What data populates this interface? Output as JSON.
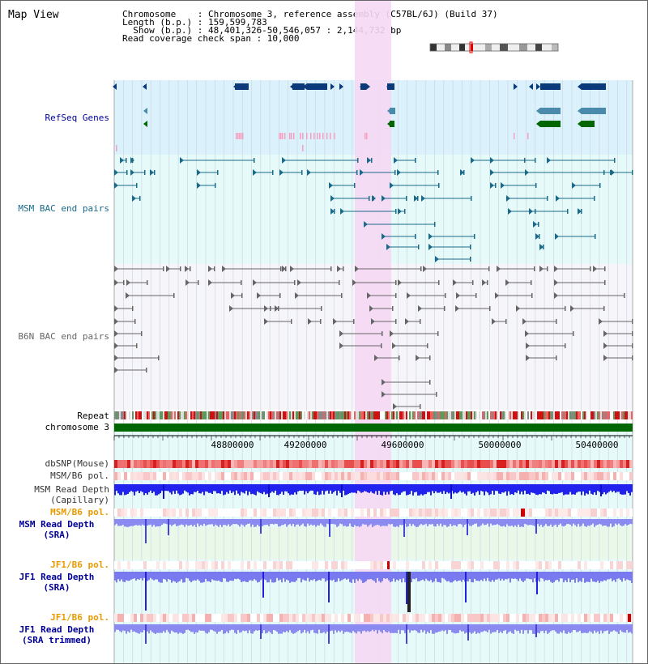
{
  "view_title": "Map View",
  "info": {
    "line1": "Chromosome    : Chromosome 3, reference assembly (C57BL/6J) (Build 37)",
    "line2": "Length (b.p.) : 159,599,783",
    "line3": "  Show (b.p.) : 48,401,326-50,546,057 : 2,144,732 bp",
    "line4": "Read coverage check span : 10,000"
  },
  "tracks": {
    "refseq": "RefSeq Genes",
    "msm_bac": "MSM BAC end pairs",
    "b6n_bac": "B6N BAC end pairs",
    "repeat": "Repeat",
    "chromosome": "chromosome 3",
    "dbsnp": "dbSNP(Mouse)",
    "msm_b6_pol": "MSM/B6 pol.",
    "msm_read_cap_1": "MSM Read Depth",
    "msm_read_cap_2": "(Capillary)",
    "msm_b6_pol_sra": "MSM/B6 pol.",
    "msm_read_sra_1": "MSM Read Depth",
    "msm_read_sra_2": "(SRA)",
    "jf1_b6_pol": "JF1/B6 pol.",
    "jf1_read_sra_1": "JF1 Read Depth",
    "jf1_read_sra_2": "(SRA)",
    "jf1_b6_pol_2": "JF1/B6 pol.",
    "jf1_read_trim_1": "JF1 Read Depth",
    "jf1_read_trim_2": "(SRA trimmed)"
  },
  "axis": {
    "ticks": [
      "48800000",
      "49200000",
      "49600000",
      "50000000",
      "50400000"
    ]
  },
  "colors": {
    "refseq_bg": "#dbf1fb",
    "bac_bg": "#e6fafa",
    "b6n_bg": "#f5f5fa",
    "highlight": "#f6d8f4",
    "refseq_label": "#000099",
    "msm_label": "#1a6a8a",
    "b6n_label": "#666666",
    "orange_label": "#e89a00",
    "blue_label": "#000099",
    "gene_dark": "#0a3a7a",
    "gene_mid": "#4a8aaa",
    "gene_green": "#006600",
    "chrom_green": "#006600",
    "depth_blue": "#2222ee",
    "depth_light": "#8080f0"
  }
}
